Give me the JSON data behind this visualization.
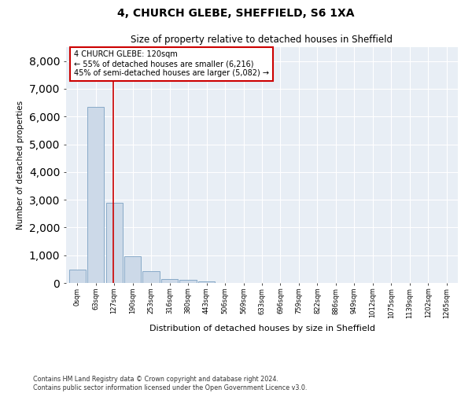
{
  "title": "4, CHURCH GLEBE, SHEFFIELD, S6 1XA",
  "subtitle": "Size of property relative to detached houses in Sheffield",
  "xlabel": "Distribution of detached houses by size in Sheffield",
  "ylabel": "Number of detached properties",
  "bar_color": "#ccd9e8",
  "bar_edge_color": "#88aac8",
  "background_color": "#e8eef5",
  "annotation_line_color": "#cc0000",
  "annotation_box_color": "#cc0000",
  "annotation_text": "4 CHURCH GLEBE: 120sqm\n← 55% of detached houses are smaller (6,216)\n45% of semi-detached houses are larger (5,082) →",
  "property_value": 120,
  "categories": [
    "0sqm",
    "63sqm",
    "127sqm",
    "190sqm",
    "253sqm",
    "316sqm",
    "380sqm",
    "443sqm",
    "506sqm",
    "569sqm",
    "633sqm",
    "696sqm",
    "759sqm",
    "822sqm",
    "886sqm",
    "949sqm",
    "1012sqm",
    "1075sqm",
    "1139sqm",
    "1202sqm",
    "1265sqm"
  ],
  "values": [
    470,
    6350,
    2900,
    950,
    430,
    150,
    100,
    60,
    0,
    0,
    0,
    0,
    0,
    0,
    0,
    0,
    0,
    0,
    0,
    0,
    0
  ],
  "ylim": [
    0,
    8500
  ],
  "yticks": [
    0,
    1000,
    2000,
    3000,
    4000,
    5000,
    6000,
    7000,
    8000
  ],
  "footer": "Contains HM Land Registry data © Crown copyright and database right 2024.\nContains public sector information licensed under the Open Government Licence v3.0.",
  "figsize": [
    6.0,
    5.0
  ],
  "dpi": 100
}
